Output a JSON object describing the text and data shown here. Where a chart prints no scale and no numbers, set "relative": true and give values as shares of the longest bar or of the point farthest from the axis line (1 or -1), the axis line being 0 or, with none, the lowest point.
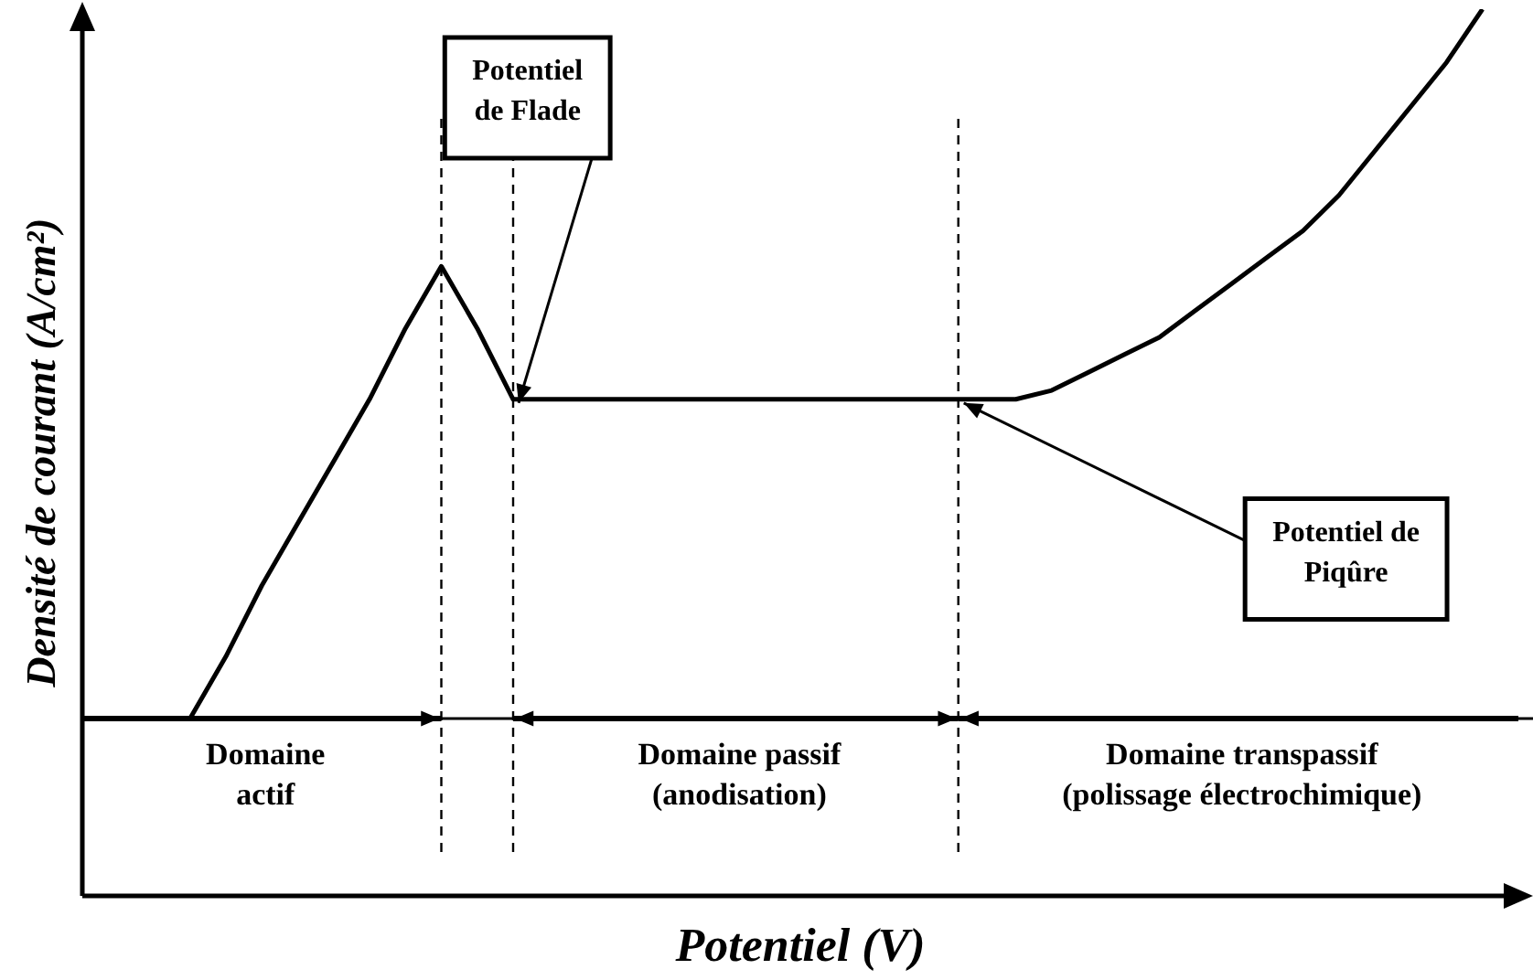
{
  "chart_data": {
    "type": "line",
    "relative": true,
    "xlabel": "Potentiel (V)",
    "ylabel": "Densité de courant (A/cm²)",
    "marker": "none",
    "line_style": "solid",
    "categories": [
      null,
      null,
      null,
      null,
      null,
      null,
      null,
      null,
      null,
      null,
      null,
      null,
      null,
      null,
      null,
      null,
      null,
      null,
      null,
      null,
      null,
      null,
      null,
      null,
      null,
      null,
      null,
      null,
      null,
      null,
      null,
      null,
      null,
      null,
      null,
      null,
      null,
      null,
      null,
      null,
      null
    ],
    "series": [
      {
        "color": "#000000",
        "values": [
          null,
          null,
          null,
          0.2,
          0.27,
          0.35,
          0.42,
          0.49,
          0.56,
          0.64,
          0.71,
          0.64,
          0.56,
          0.56,
          0.56,
          0.56,
          0.56,
          0.56,
          0.56,
          0.56,
          0.56,
          0.56,
          0.56,
          0.56,
          0.56,
          0.56,
          0.56,
          0.57,
          0.59,
          0.61,
          0.63,
          0.66,
          0.69,
          0.72,
          0.75,
          0.79,
          0.84,
          0.89,
          0.94,
          1,
          null
        ]
      }
    ],
    "ref_lines": [
      {
        "axis": "y",
        "value": 0.2,
        "line_style": "solid"
      }
    ],
    "annotations": [
      "Potentiel\nde Flade",
      "Potentiel de\nPiqûre",
      "Domaine\nactif",
      "Domaine passif\n(anodisation)",
      "Domaine transpassif\n(polissage électrochimique)"
    ]
  }
}
